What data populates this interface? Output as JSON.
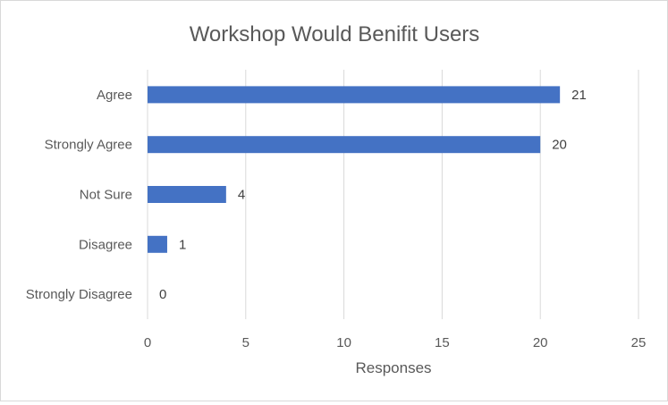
{
  "chart_data": {
    "type": "bar",
    "orientation": "horizontal",
    "title": "Workshop Would Benifit Users",
    "xlabel": "Responses",
    "ylabel": "",
    "categories": [
      "Agree",
      "Strongly Agree",
      "Not Sure",
      "Disagree",
      "Strongly Disagree"
    ],
    "values": [
      21,
      20,
      4,
      1,
      0
    ],
    "data_labels": [
      "21",
      "20",
      "4",
      "1",
      "0"
    ],
    "xlim": [
      0,
      25
    ],
    "xticks": [
      0,
      5,
      10,
      15,
      20,
      25
    ],
    "xtick_labels": [
      "0",
      "5",
      "10",
      "15",
      "20",
      "25"
    ],
    "grid": "vertical",
    "legend": "none",
    "bar_color": "#4472c4",
    "grid_color": "#d9d9d9",
    "text_color": "#595959"
  }
}
